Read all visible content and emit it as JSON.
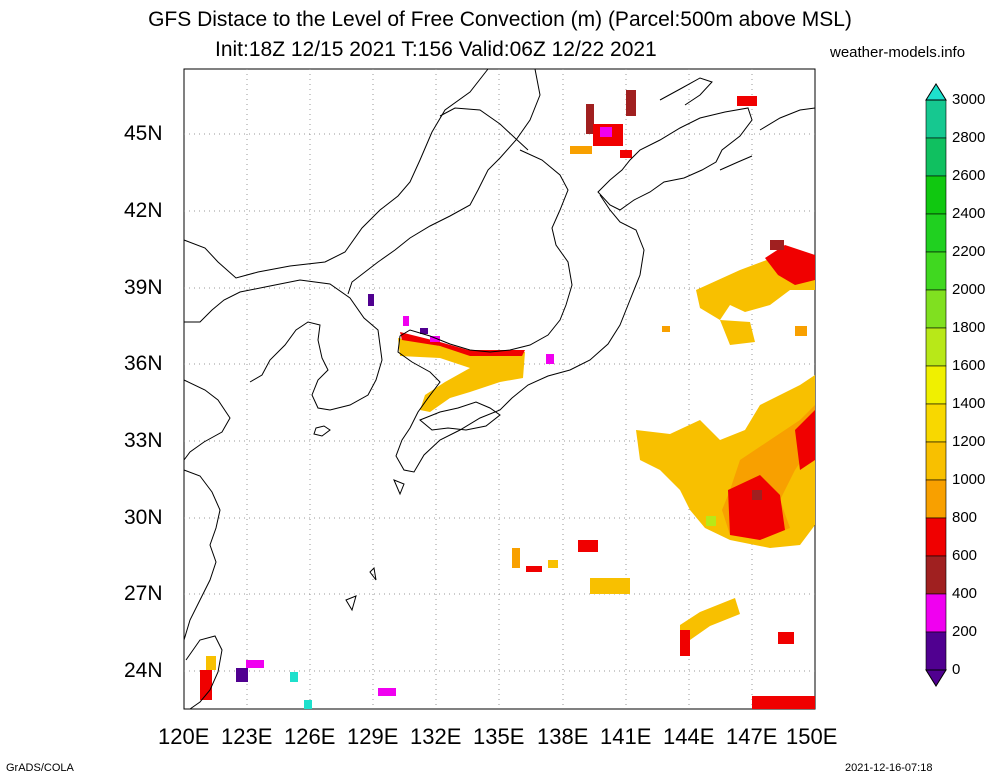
{
  "title": {
    "line1": "GFS Distace to the Level of Free Convection (m) (Parcel:500m above MSL)",
    "line2": "Init:18Z 12/15 2021 T:156 Valid:06Z 12/22 2021",
    "site": "weather-models.info"
  },
  "footer": {
    "left": "GrADS/COLA",
    "right": "2021-12-16-07:18"
  },
  "map": {
    "lat_labels": [
      "45N",
      "42N",
      "39N",
      "36N",
      "33N",
      "30N",
      "27N",
      "24N"
    ],
    "lon_labels": [
      "120E",
      "123E",
      "126E",
      "129E",
      "132E",
      "135E",
      "138E",
      "141E",
      "144E",
      "147E",
      "150E"
    ],
    "region": "Japan / East Asia",
    "lon_range": [
      120,
      150
    ],
    "lat_range": [
      22.5,
      47.5
    ]
  },
  "colorbar": {
    "labels": [
      "3000",
      "2800",
      "2600",
      "2400",
      "2200",
      "2000",
      "1800",
      "1600",
      "1400",
      "1200",
      "1000",
      "800",
      "600",
      "400",
      "200",
      "0"
    ],
    "colors": [
      "#1ee0cc",
      "#16c890",
      "#10c060",
      "#10c810",
      "#20d020",
      "#40d820",
      "#80e020",
      "#b8e818",
      "#f0f000",
      "#f8d800",
      "#f8c000",
      "#f8a000",
      "#f00000",
      "#a02020",
      "#f000f0",
      "#500090"
    ]
  }
}
